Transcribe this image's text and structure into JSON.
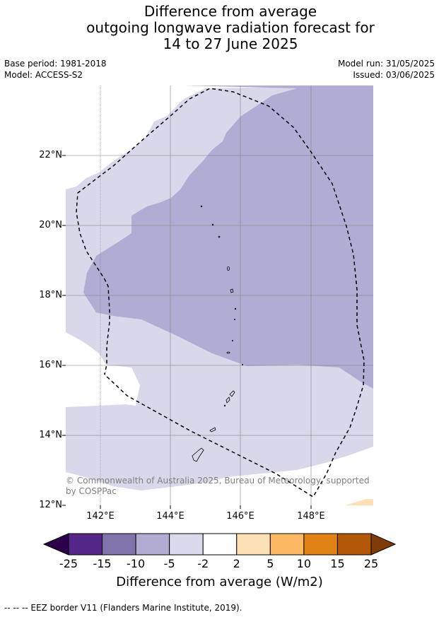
{
  "title": {
    "line1": "Difference from average",
    "line2": "outgoing longwave radiation forecast for",
    "line3": "14 to 27 June 2025"
  },
  "meta": {
    "base_period": "Base period: 1981-2018",
    "model": "Model: ACCESS-S2",
    "model_run": "Model run: 31/05/2025",
    "issued": "Issued: 03/06/2025"
  },
  "map": {
    "lat_labels": [
      "22°N",
      "20°N",
      "18°N",
      "16°N",
      "14°N",
      "12°N"
    ],
    "lon_labels": [
      "142°E",
      "144°E",
      "146°E",
      "148°E"
    ],
    "copyright": "© Commonwealth of Australia 2025, Bureau of Meteorology, supported by COSPPac",
    "colors": {
      "light_lavender": "#d8d8ea",
      "lavender": "#b1acd3",
      "light_peach": "#fee0b6"
    }
  },
  "colorbar": {
    "ticks": [
      "-25",
      "-15",
      "-10",
      "-5",
      "-2",
      "2",
      "5",
      "10",
      "15",
      "25"
    ],
    "label": "Difference from average (W/m2)",
    "colors": [
      "#2d004b",
      "#542788",
      "#8073ac",
      "#b2abd2",
      "#d8daeb",
      "#ffffff",
      "#fee0b6",
      "#fdb863",
      "#e08214",
      "#b35806",
      "#7f3b08"
    ]
  },
  "footer": "--  --  -- EEZ border V11 (Flanders Marine Institute, 2019)."
}
